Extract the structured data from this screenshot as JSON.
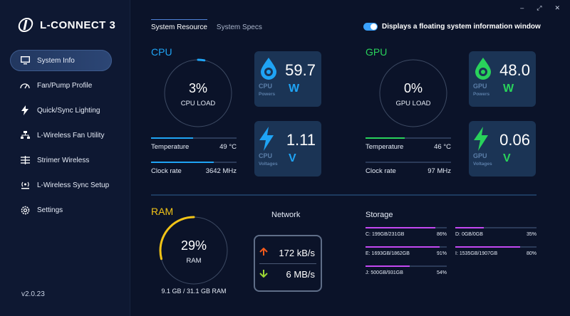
{
  "app": {
    "name": "L-CONNECT 3",
    "version": "v2.0.23"
  },
  "window_controls": {
    "minimize": "–",
    "maximize": "⤢",
    "close": "✕"
  },
  "nav": [
    {
      "label": "System Info",
      "icon": "monitor-icon",
      "active": true
    },
    {
      "label": "Fan/Pump Profile",
      "icon": "gauge-icon",
      "active": false
    },
    {
      "label": "Quick/Sync Lighting",
      "icon": "lightning-icon",
      "active": false
    },
    {
      "label": "L-Wireless Fan Utility",
      "icon": "network-icon",
      "active": false
    },
    {
      "label": "Strimer Wireless",
      "icon": "strimer-icon",
      "active": false
    },
    {
      "label": "L-Wireless Sync Setup",
      "icon": "wireless-sync-icon",
      "active": false
    },
    {
      "label": "Settings",
      "icon": "gear-icon",
      "active": false
    }
  ],
  "tabs": [
    {
      "label": "System Resource",
      "active": true
    },
    {
      "label": "System Specs",
      "active": false
    }
  ],
  "floating_toggle": {
    "label": "Displays a floating system information window",
    "on": true
  },
  "cpu": {
    "title": "CPU",
    "load_value": "3%",
    "load_label": "CPU LOAD",
    "load_fraction": 0.03,
    "power": {
      "value": "59.7",
      "unit": "W",
      "label1": "CPU",
      "label2": "Powers"
    },
    "voltage": {
      "value": "1.11",
      "unit": "V",
      "label1": "CPU",
      "label2": "Voltages"
    },
    "temperature_label": "Temperature",
    "temperature_value": "49 °C",
    "temperature_fraction": 0.49,
    "clock_label": "Clock rate",
    "clock_value": "3642 MHz",
    "clock_fraction": 0.73
  },
  "gpu": {
    "title": "GPU",
    "load_value": "0%",
    "load_label": "GPU LOAD",
    "load_fraction": 0.0,
    "power": {
      "value": "48.0",
      "unit": "W",
      "label1": "GPU",
      "label2": "Powers"
    },
    "voltage": {
      "value": "0.06",
      "unit": "V",
      "label1": "GPU",
      "label2": "Voltages"
    },
    "temperature_label": "Temperature",
    "temperature_value": "46 °C",
    "temperature_fraction": 0.46,
    "clock_label": "Clock rate",
    "clock_value": "97 MHz",
    "clock_fraction": 0.0
  },
  "ram": {
    "title": "RAM",
    "load_value": "29%",
    "load_label": "RAM",
    "load_fraction": 0.29,
    "usage": "9.1 GB / 31.1 GB RAM"
  },
  "network": {
    "title": "Network",
    "upload": "172 kB/s",
    "download": "6 MB/s"
  },
  "storage": {
    "title": "Storage",
    "disks": [
      {
        "name": "C: 199GB/231GB",
        "percent": "86%",
        "fraction": 0.86
      },
      {
        "name": "D: 0GB/0GB",
        "percent": "35%",
        "fraction": 0.35
      },
      {
        "name": "E: 1693GB/1862GB",
        "percent": "91%",
        "fraction": 0.91
      },
      {
        "name": "I: 1535GB/1907GB",
        "percent": "80%",
        "fraction": 0.8
      },
      {
        "name": "J: 500GB/931GB",
        "percent": "54%",
        "fraction": 0.54
      }
    ]
  },
  "colors": {
    "cpu_accent": "#1fa4f5",
    "gpu_accent": "#29d25b",
    "ram_accent": "#f2c417",
    "storage_accent": "#c448f2",
    "upload_arrow": "#f25a1c",
    "download_arrow": "#9bd534"
  }
}
